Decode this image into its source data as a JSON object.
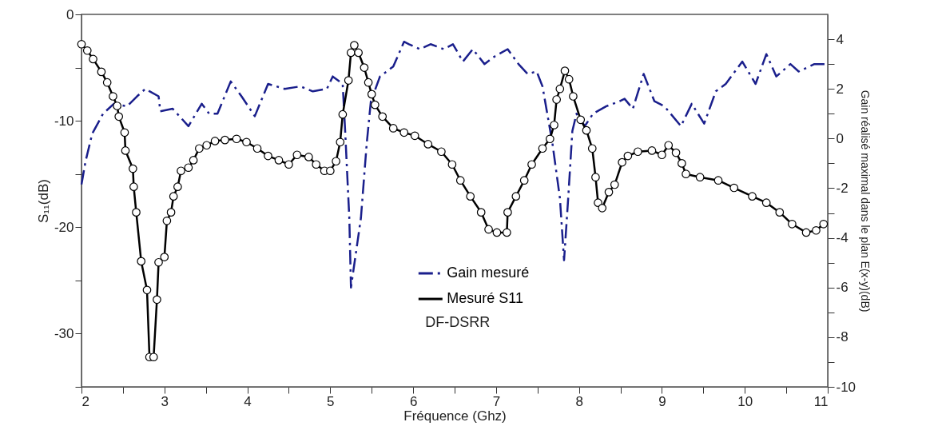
{
  "chart_data": {
    "type": "line",
    "xlabel": "Fréquence (Ghz)",
    "ylabel": "S₁₁(dB)",
    "y2label": "Gain réalisé maximal dans le plan E(x-y)(dB)",
    "xlim": [
      2,
      11
    ],
    "xticks": [
      2,
      {
        "value": 2.5,
        "label": null
      },
      3,
      {
        "value": 3.5,
        "label": null
      },
      4,
      {
        "value": 4.5,
        "label": null
      },
      5,
      {
        "value": 5.5,
        "label": null
      },
      6,
      {
        "value": 6.5,
        "label": null
      },
      7,
      {
        "value": 7.5,
        "label": null
      },
      8,
      {
        "value": 8.5,
        "label": null
      },
      9,
      {
        "value": 9.5,
        "label": null
      },
      10,
      {
        "value": 10.5,
        "label": null
      },
      11
    ],
    "ylim": [
      -35,
      0
    ],
    "yticks": [
      0,
      {
        "value": -5,
        "label": null
      },
      -10,
      {
        "value": -15,
        "label": null
      },
      -20,
      {
        "value": -25,
        "label": null
      },
      -30,
      {
        "value": -35,
        "label": null
      }
    ],
    "y2lim": [
      -10,
      5
    ],
    "y2ticks": [
      -10,
      {
        "value": -9,
        "label": null
      },
      -8,
      {
        "value": -7,
        "label": null
      },
      -6,
      {
        "value": -5,
        "label": null
      },
      -4,
      {
        "value": -3,
        "label": null
      },
      -2,
      {
        "value": -1,
        "label": null
      },
      0,
      {
        "value": 1,
        "label": null
      },
      2,
      {
        "value": 3,
        "label": null
      },
      4
    ],
    "grid": false,
    "legend": "bottom",
    "annotations": [
      "DF-DSRR"
    ],
    "series": [
      {
        "name": "Gain mesuré",
        "color": "#1a1f8c",
        "axis": "y2",
        "line_style": "dashed",
        "marker": "none",
        "x": [
          2.0,
          2.05,
          2.13,
          2.26,
          2.39,
          2.55,
          2.67,
          2.77,
          2.93,
          2.95,
          3.1,
          3.29,
          3.45,
          3.54,
          3.64,
          3.8,
          3.93,
          4.09,
          4.25,
          4.45,
          4.64,
          4.79,
          4.96,
          5.03,
          5.15,
          5.18,
          5.23,
          5.25,
          5.37,
          5.44,
          5.49,
          5.6,
          5.76,
          5.89,
          5.95,
          6.08,
          6.21,
          6.37,
          6.48,
          6.6,
          6.72,
          6.86,
          6.98,
          7.14,
          7.27,
          7.38,
          7.49,
          7.56,
          7.68,
          7.77,
          7.82,
          7.87,
          7.92,
          7.97,
          8.07,
          8.17,
          8.33,
          8.49,
          8.55,
          8.65,
          8.78,
          8.91,
          9.03,
          9.23,
          9.36,
          9.51,
          9.65,
          9.77,
          9.97,
          10.13,
          10.26,
          10.38,
          10.55,
          10.65,
          10.84,
          10.98
        ],
        "values": [
          -1.85,
          -0.9,
          0.2,
          1.0,
          1.4,
          1.3,
          1.7,
          2.0,
          1.7,
          1.1,
          1.2,
          0.5,
          1.4,
          1.0,
          1.0,
          2.3,
          1.7,
          0.9,
          2.2,
          2.0,
          2.1,
          1.9,
          2.0,
          2.5,
          2.2,
          0.3,
          -3.2,
          -6.0,
          -3.2,
          -0.2,
          1.5,
          2.5,
          2.9,
          3.9,
          3.8,
          3.6,
          3.8,
          3.6,
          3.8,
          3.1,
          3.6,
          3.0,
          3.3,
          3.6,
          3.0,
          2.6,
          2.7,
          2.1,
          -0.2,
          -2.4,
          -4.9,
          -2.4,
          0.3,
          1.0,
          0.5,
          1.0,
          1.3,
          1.5,
          1.6,
          1.2,
          2.6,
          1.5,
          1.3,
          0.5,
          1.4,
          0.6,
          1.9,
          2.2,
          3.1,
          2.2,
          3.4,
          2.5,
          3.0,
          2.7,
          3.0,
          3.0
        ]
      },
      {
        "name": "Mesuré S11",
        "color": "#000000",
        "line_style": "solid",
        "marker": "circle",
        "x": [
          2.0,
          2.07,
          2.14,
          2.24,
          2.31,
          2.38,
          2.43,
          2.45,
          2.52,
          2.53,
          2.62,
          2.63,
          2.66,
          2.72,
          2.79,
          2.82,
          2.87,
          2.91,
          2.93,
          3.0,
          3.03,
          3.08,
          3.11,
          3.16,
          3.2,
          3.29,
          3.35,
          3.42,
          3.51,
          3.61,
          3.73,
          3.87,
          3.99,
          4.12,
          4.25,
          4.38,
          4.5,
          4.6,
          4.74,
          4.83,
          4.93,
          5.0,
          5.07,
          5.12,
          5.15,
          5.22,
          5.25,
          5.29,
          5.34,
          5.41,
          5.46,
          5.5,
          5.54,
          5.63,
          5.76,
          5.89,
          6.02,
          6.18,
          6.34,
          6.47,
          6.57,
          6.69,
          6.82,
          6.91,
          7.01,
          7.13,
          7.14,
          7.24,
          7.34,
          7.43,
          7.56,
          7.65,
          7.7,
          7.73,
          7.77,
          7.83,
          7.88,
          7.93,
          8.02,
          8.09,
          8.16,
          8.2,
          8.23,
          8.28,
          8.36,
          8.43,
          8.52,
          8.59,
          8.71,
          8.88,
          9.0,
          9.08,
          9.17,
          9.24,
          9.29,
          9.46,
          9.68,
          9.87,
          10.09,
          10.26,
          10.42,
          10.57,
          10.74,
          10.86,
          10.95
        ],
        "values": [
          -2.8,
          -3.4,
          -4.2,
          -5.4,
          -6.4,
          -7.7,
          -8.6,
          -9.6,
          -11.1,
          -12.8,
          -14.5,
          -16.2,
          -18.6,
          -23.2,
          -25.9,
          -32.2,
          -32.2,
          -26.8,
          -23.3,
          -22.8,
          -19.4,
          -18.6,
          -17.1,
          -16.2,
          -14.7,
          -14.4,
          -13.7,
          -12.6,
          -12.3,
          -11.9,
          -11.8,
          -11.7,
          -12.0,
          -12.6,
          -13.3,
          -13.7,
          -14.1,
          -13.2,
          -13.4,
          -14.1,
          -14.7,
          -14.7,
          -13.8,
          -12.0,
          -9.4,
          -6.2,
          -3.6,
          -2.9,
          -3.6,
          -5.0,
          -6.4,
          -7.5,
          -8.5,
          -9.6,
          -10.7,
          -11.1,
          -11.4,
          -12.2,
          -12.9,
          -14.1,
          -15.6,
          -17.1,
          -18.6,
          -20.2,
          -20.5,
          -20.5,
          -18.6,
          -17.1,
          -15.6,
          -14.1,
          -12.6,
          -11.7,
          -10.4,
          -8.0,
          -7.0,
          -5.3,
          -6.1,
          -7.7,
          -9.9,
          -10.9,
          -12.6,
          -15.3,
          -17.7,
          -18.2,
          -16.7,
          -16.0,
          -13.9,
          -13.3,
          -12.9,
          -12.8,
          -13.2,
          -12.3,
          -13.0,
          -14.0,
          -15.0,
          -15.3,
          -15.6,
          -16.3,
          -17.1,
          -17.7,
          -18.6,
          -19.7,
          -20.5,
          -20.3,
          -19.7
        ]
      }
    ]
  }
}
